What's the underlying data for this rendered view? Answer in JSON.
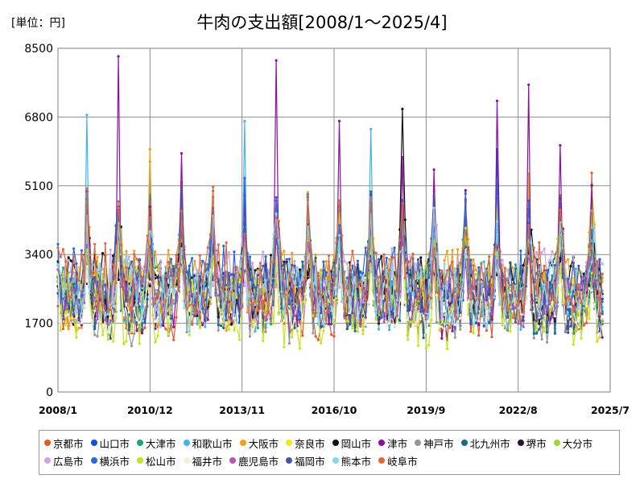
{
  "chart_data": {
    "type": "line",
    "title": "牛肉の支出額[2008/1～2025/4]",
    "unit_label": "[単位：円]",
    "ylim": [
      0,
      8500
    ],
    "yticks": [
      0,
      1700,
      3400,
      5100,
      6800,
      8500
    ],
    "x_range": [
      "2008/1",
      "2025/7"
    ],
    "xticks": [
      "2008/1",
      "2010/12",
      "2013/11",
      "2016/10",
      "2019/9",
      "2022/8",
      "2025/7"
    ],
    "grid": true,
    "legend_position": "bottom",
    "series": [
      {
        "name": "京都市",
        "color": "#e8562a"
      },
      {
        "name": "山口市",
        "color": "#1552d1"
      },
      {
        "name": "大津市",
        "color": "#1fa37c"
      },
      {
        "name": "和歌山市",
        "color": "#47b3e6"
      },
      {
        "name": "大阪市",
        "color": "#f2a016"
      },
      {
        "name": "奈良市",
        "color": "#f5e61b"
      },
      {
        "name": "岡山市",
        "color": "#111111"
      },
      {
        "name": "津市",
        "color": "#8b0f9e"
      },
      {
        "name": "神戸市",
        "color": "#969696"
      },
      {
        "name": "北九州市",
        "color": "#176a8a"
      },
      {
        "name": "堺市",
        "color": "#2a1238"
      },
      {
        "name": "大分市",
        "color": "#a6d43c"
      },
      {
        "name": "広島市",
        "color": "#c9a6e8"
      },
      {
        "name": "横浜市",
        "color": "#2f63e0"
      },
      {
        "name": "松山市",
        "color": "#c9e21f"
      },
      {
        "name": "福井市",
        "color": "#f4f0d6"
      },
      {
        "name": "鹿児島市",
        "color": "#b357b8"
      },
      {
        "name": "福岡市",
        "color": "#4b55a6"
      },
      {
        "name": "熊本市",
        "color": "#86d6ee"
      },
      {
        "name": "岐阜市",
        "color": "#dd6a3c"
      }
    ]
  }
}
